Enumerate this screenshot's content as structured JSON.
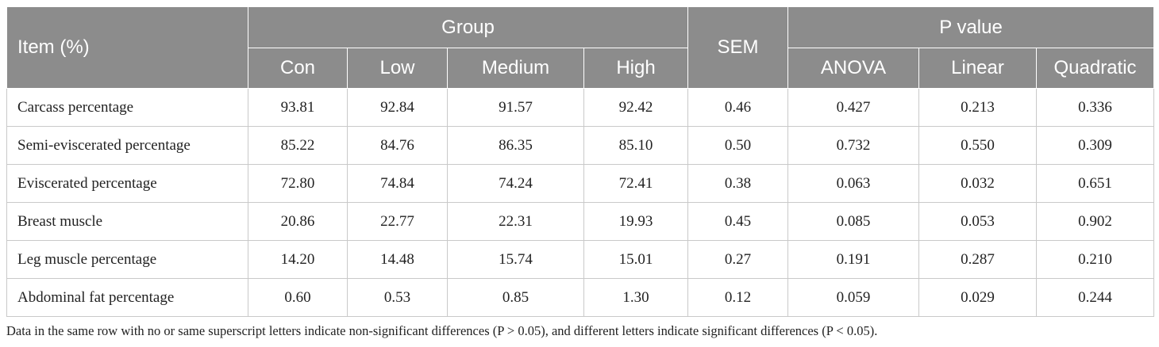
{
  "table": {
    "item_header": "Item (%)",
    "group_header": "Group",
    "sem_header": "SEM",
    "p_header": "P value",
    "group_cols": [
      "Con",
      "Low",
      "Medium",
      "High"
    ],
    "p_cols": [
      "ANOVA",
      "Linear",
      "Quadratic"
    ],
    "rows": [
      {
        "item": "Carcass percentage",
        "con": "93.81",
        "low": "92.84",
        "medium": "91.57",
        "high": "92.42",
        "sem": "0.46",
        "anova": "0.427",
        "linear": "0.213",
        "quadratic": "0.336"
      },
      {
        "item": "Semi-eviscerated percentage",
        "con": "85.22",
        "low": "84.76",
        "medium": "86.35",
        "high": "85.10",
        "sem": "0.50",
        "anova": "0.732",
        "linear": "0.550",
        "quadratic": "0.309"
      },
      {
        "item": "Eviscerated percentage",
        "con": "72.80",
        "low": "74.84",
        "medium": "74.24",
        "high": "72.41",
        "sem": "0.38",
        "anova": "0.063",
        "linear": "0.032",
        "quadratic": "0.651"
      },
      {
        "item": "Breast muscle",
        "con": "20.86",
        "low": "22.77",
        "medium": "22.31",
        "high": "19.93",
        "sem": "0.45",
        "anova": "0.085",
        "linear": "0.053",
        "quadratic": "0.902"
      },
      {
        "item": "Leg muscle percentage",
        "con": "14.20",
        "low": "14.48",
        "medium": "15.74",
        "high": "15.01",
        "sem": "0.27",
        "anova": "0.191",
        "linear": "0.287",
        "quadratic": "0.210"
      },
      {
        "item": "Abdominal fat percentage",
        "con": "0.60",
        "low": "0.53",
        "medium": "0.85",
        "high": "1.30",
        "sem": "0.12",
        "anova": "0.059",
        "linear": "0.029",
        "quadratic": "0.244"
      }
    ]
  },
  "footnote": "Data in the same row with no or same superscript letters indicate non-significant differences (P > 0.05), and different letters indicate significant differences (P < 0.05)."
}
